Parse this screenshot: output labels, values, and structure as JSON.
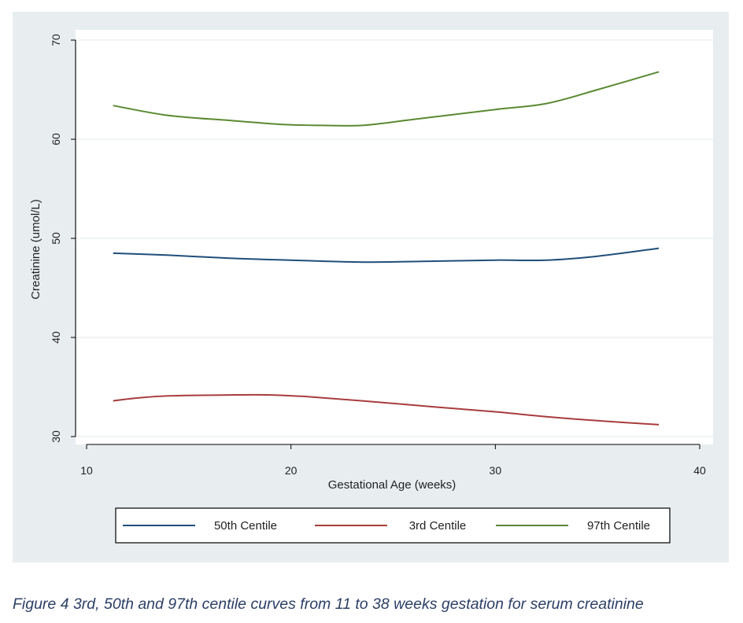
{
  "figure_caption": "Figure 4 3rd, 50th and 97th centile curves from 11 to 38 weeks gestation for serum creatinine",
  "colors": {
    "panel_background": "#e8edf0",
    "plot_background": "#ffffff",
    "grid": "#e8edf0",
    "axis": "#000000",
    "caption": "#2c3f66"
  },
  "chart_data": {
    "type": "line",
    "title": "",
    "xlabel": "Gestational Age (weeks)",
    "ylabel": "Creatinine (umol/L)",
    "xlim": [
      10,
      40
    ],
    "ylim": [
      30,
      70
    ],
    "x_ticks": [
      "10",
      "20",
      "30",
      "40"
    ],
    "y_ticks": [
      "30",
      "40",
      "50",
      "60",
      "70"
    ],
    "grid": true,
    "legend_position": "bottom",
    "series": [
      {
        "name": "50th Centile",
        "color": "#1f4e79",
        "x": [
          11.3,
          14,
          17,
          20,
          23.5,
          27,
          30,
          32.5,
          35,
          38
        ],
        "y": [
          48.5,
          48.3,
          48.0,
          47.8,
          47.6,
          47.7,
          47.8,
          47.8,
          48.2,
          49.0
        ]
      },
      {
        "name": "3rd Centile",
        "color": "#a83c3c",
        "x": [
          11.3,
          12.5,
          14,
          17,
          19,
          21,
          23.5,
          27,
          30,
          32.5,
          35,
          38
        ],
        "y": [
          33.6,
          33.9,
          34.1,
          34.2,
          34.2,
          34.0,
          33.6,
          33.0,
          32.5,
          32.0,
          31.6,
          31.2
        ]
      },
      {
        "name": "97th Centile",
        "color": "#5a8a32",
        "x": [
          11.3,
          14,
          17,
          19.5,
          21.5,
          23.5,
          26,
          30,
          32.5,
          35,
          38
        ],
        "y": [
          63.4,
          62.4,
          61.9,
          61.5,
          61.4,
          61.4,
          62.0,
          63.0,
          63.6,
          65.0,
          66.8
        ]
      }
    ]
  }
}
